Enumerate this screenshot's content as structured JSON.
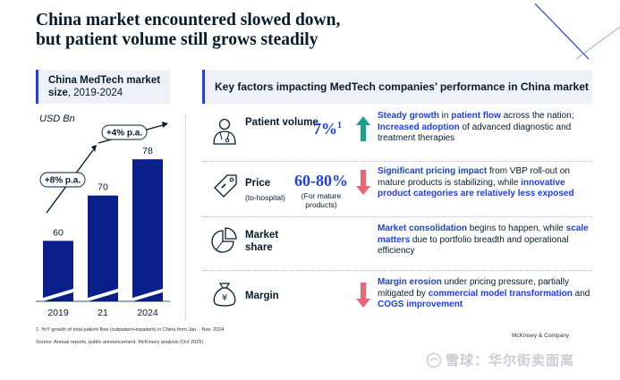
{
  "title": {
    "line1": "China market encountered slowed down,",
    "line2": "but patient volume still grows steadily"
  },
  "left_panel": {
    "header_bold": "China MedTech market size",
    "header_rest": ", 2019-2024",
    "unit": "USD Bn"
  },
  "right_panel": {
    "header": "Key factors impacting MedTech companies’ performance in China market"
  },
  "chart_data": {
    "type": "bar",
    "categories": [
      "2019",
      "21",
      "2024"
    ],
    "values": [
      60,
      70,
      78
    ],
    "ylabel": "USD Bn",
    "broken_axis": true,
    "bar_color": "#0b1f8a",
    "annotations": [
      {
        "text": "+8% p.a.",
        "from": "2019",
        "to": "21"
      },
      {
        "text": "+4% p.a.",
        "from": "21",
        "to": "2024"
      }
    ]
  },
  "factors": [
    {
      "icon": "patient-icon",
      "label": "Patient volume",
      "sublabel": "",
      "metric": "7%",
      "metric_sup": "1",
      "metric_note": "",
      "direction": "up",
      "desc_parts": [
        {
          "t": "Steady growth",
          "h": true
        },
        {
          "t": " in ",
          "h": false
        },
        {
          "t": "patient flow",
          "h": true
        },
        {
          "t": " across the nation; ",
          "h": false
        },
        {
          "t": "Increased adoption",
          "h": true
        },
        {
          "t": " of advanced diagnostic and treatment therapies",
          "h": false
        }
      ]
    },
    {
      "icon": "price-tag-icon",
      "label": "Price",
      "sublabel": "(to-hospital)",
      "metric": "60-80%",
      "metric_sup": "",
      "metric_note": "(For mature products)",
      "direction": "down",
      "desc_parts": [
        {
          "t": "Significant pricing impact",
          "h": true
        },
        {
          "t": " from VBP roll-out on mature products is stabilizing, while ",
          "h": false
        },
        {
          "t": "innovative product categories are relatively less exposed",
          "h": true
        }
      ]
    },
    {
      "icon": "pie-chart-icon",
      "label": "Market share",
      "sublabel": "",
      "metric": "",
      "metric_sup": "",
      "metric_note": "",
      "direction": "none",
      "desc_parts": [
        {
          "t": "Market consolidation",
          "h": true
        },
        {
          "t": " begins to happen, while ",
          "h": false
        },
        {
          "t": "scale matters",
          "h": true
        },
        {
          "t": " due to portfolio breadth and operational efficiency",
          "h": false
        }
      ]
    },
    {
      "icon": "money-bag-icon",
      "label": "Margin",
      "sublabel": "",
      "metric": "",
      "metric_sup": "",
      "metric_note": "",
      "direction": "down",
      "desc_parts": [
        {
          "t": "Margin erosion",
          "h": true
        },
        {
          "t": " under pricing pressure, partially mitigated by ",
          "h": false
        },
        {
          "t": "commercial model transformation",
          "h": true
        },
        {
          "t": " and ",
          "h": false
        },
        {
          "t": "COGS improvement",
          "h": true
        }
      ]
    }
  ],
  "footnote": "1.   YoY growth of total patient flow (outpatient+inpatient) in China from Jan. - Nov. 2024",
  "source": "Source: Annual reports, public announcement, McKinsey analysis (Oct 2025)",
  "brand": "McKinsey & Company",
  "watermark": "雪球：华尔街卖面离",
  "colors": {
    "navy": "#051c2c",
    "accent_blue": "#1f40e6",
    "bar_navy": "#0b1f8a",
    "up_teal": "#17a589",
    "down_red": "#e8657a",
    "panel_bg": "#eef1f7"
  }
}
